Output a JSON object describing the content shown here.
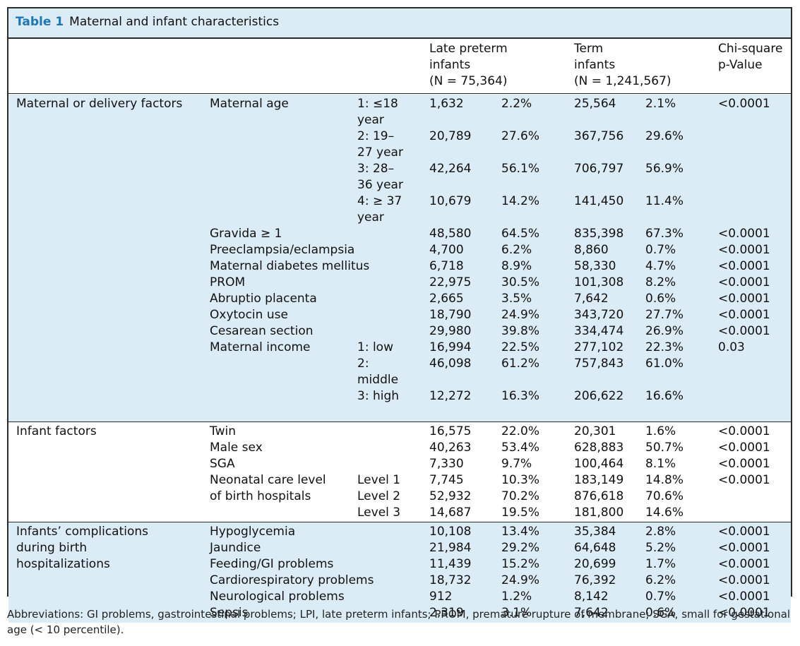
{
  "table": {
    "label": "Table 1",
    "title": "Maternal and infant characteristics",
    "headers": {
      "lpi": [
        "Late preterm",
        "infants",
        "(N = 75,364)"
      ],
      "term": [
        "Term",
        "infants",
        "(N = 1,241,567)"
      ],
      "chi": [
        "Chi-square",
        "p-Value"
      ]
    },
    "groups": [
      {
        "name": "Maternal or delivery factors",
        "rows": [
          {
            "factor": "Maternal age",
            "sub": "1: ≤18 year",
            "lpi_n": "1,632",
            "lpi_pct": "2.2%",
            "term_n": "25,564",
            "term_pct": "2.1%",
            "p": "<0.0001"
          },
          {
            "factor": "",
            "sub": "2: 19–27 year",
            "lpi_n": "20,789",
            "lpi_pct": "27.6%",
            "term_n": "367,756",
            "term_pct": "29.6%",
            "p": ""
          },
          {
            "factor": "",
            "sub": "3: 28–36 year",
            "lpi_n": "42,264",
            "lpi_pct": "56.1%",
            "term_n": "706,797",
            "term_pct": "56.9%",
            "p": ""
          },
          {
            "factor": "",
            "sub": "4: ≥ 37 year",
            "lpi_n": "10,679",
            "lpi_pct": "14.2%",
            "term_n": "141,450",
            "term_pct": "11.4%",
            "p": ""
          },
          {
            "factor": "Gravida ≥ 1",
            "sub": "",
            "lpi_n": "48,580",
            "lpi_pct": "64.5%",
            "term_n": "835,398",
            "term_pct": "67.3%",
            "p": "<0.0001"
          },
          {
            "factor": "Preeclampsia/eclampsia",
            "sub": "",
            "lpi_n": "4,700",
            "lpi_pct": "6.2%",
            "term_n": "8,860",
            "term_pct": "0.7%",
            "p": "<0.0001"
          },
          {
            "factor": "Maternal diabetes mellitus",
            "sub": "",
            "lpi_n": "6,718",
            "lpi_pct": "8.9%",
            "term_n": "58,330",
            "term_pct": "4.7%",
            "p": "<0.0001"
          },
          {
            "factor": "PROM",
            "sub": "",
            "lpi_n": "22,975",
            "lpi_pct": "30.5%",
            "term_n": "101,308",
            "term_pct": "8.2%",
            "p": "<0.0001"
          },
          {
            "factor": "Abruptio placenta",
            "sub": "",
            "lpi_n": "2,665",
            "lpi_pct": "3.5%",
            "term_n": "7,642",
            "term_pct": "0.6%",
            "p": "<0.0001"
          },
          {
            "factor": "Oxytocin use",
            "sub": "",
            "lpi_n": "18,790",
            "lpi_pct": "24.9%",
            "term_n": "343,720",
            "term_pct": "27.7%",
            "p": "<0.0001"
          },
          {
            "factor": "Cesarean section",
            "sub": "",
            "lpi_n": "29,980",
            "lpi_pct": "39.8%",
            "term_n": "334,474",
            "term_pct": "26.9%",
            "p": "<0.0001"
          },
          {
            "factor": "Maternal income",
            "sub": "1: low",
            "lpi_n": "16,994",
            "lpi_pct": "22.5%",
            "term_n": "277,102",
            "term_pct": "22.3%",
            "p": "0.03"
          },
          {
            "factor": "",
            "sub": "2: middle",
            "lpi_n": "46,098",
            "lpi_pct": "61.2%",
            "term_n": "757,843",
            "term_pct": "61.0%",
            "p": ""
          },
          {
            "factor": "",
            "sub": "3: high",
            "lpi_n": "12,272",
            "lpi_pct": "16.3%",
            "term_n": "206,622",
            "term_pct": "16.6%",
            "p": ""
          }
        ]
      },
      {
        "name": "Infant factors",
        "rows": [
          {
            "factor": "Twin",
            "sub": "",
            "lpi_n": "16,575",
            "lpi_pct": "22.0%",
            "term_n": "20,301",
            "term_pct": "1.6%",
            "p": "<0.0001"
          },
          {
            "factor": "Male sex",
            "sub": "",
            "lpi_n": "40,263",
            "lpi_pct": "53.4%",
            "term_n": "628,883",
            "term_pct": "50.7%",
            "p": "<0.0001"
          },
          {
            "factor": "SGA",
            "sub": "",
            "lpi_n": "7,330",
            "lpi_pct": "9.7%",
            "term_n": "100,464",
            "term_pct": "8.1%",
            "p": "<0.0001"
          },
          {
            "factor": "Neonatal care level",
            "sub": "Level 1",
            "lpi_n": "7,745",
            "lpi_pct": "10.3%",
            "term_n": "183,149",
            "term_pct": "14.8%",
            "p": "<0.0001"
          },
          {
            "factor": "of birth hospitals",
            "sub": "Level 2",
            "lpi_n": "52,932",
            "lpi_pct": "70.2%",
            "term_n": "876,618",
            "term_pct": "70.6%",
            "p": ""
          },
          {
            "factor": "",
            "sub": "Level 3",
            "lpi_n": "14,687",
            "lpi_pct": "19.5%",
            "term_n": "181,800",
            "term_pct": "14.6%",
            "p": ""
          }
        ]
      },
      {
        "name": "Infants’ complications during birth hospitalizations",
        "rows": [
          {
            "factor": "Hypoglycemia",
            "sub": "",
            "lpi_n": "10,108",
            "lpi_pct": "13.4%",
            "term_n": "35,384",
            "term_pct": "2.8%",
            "p": "<0.0001"
          },
          {
            "factor": "Jaundice",
            "sub": "",
            "lpi_n": "21,984",
            "lpi_pct": "29.2%",
            "term_n": "64,648",
            "term_pct": "5.2%",
            "p": "<0.0001"
          },
          {
            "factor": "Feeding/GI problems",
            "sub": "",
            "lpi_n": "11,439",
            "lpi_pct": "15.2%",
            "term_n": "20,699",
            "term_pct": "1.7%",
            "p": "<0.0001"
          },
          {
            "factor": "Cardiorespiratory problems",
            "sub": "",
            "lpi_n": "18,732",
            "lpi_pct": "24.9%",
            "term_n": "76,392",
            "term_pct": "6.2%",
            "p": "<0.0001"
          },
          {
            "factor": "Neurological problems",
            "sub": "",
            "lpi_n": "912",
            "lpi_pct": "1.2%",
            "term_n": "8,142",
            "term_pct": "0.7%",
            "p": "<0.0001"
          },
          {
            "factor": "Sepsis",
            "sub": "",
            "lpi_n": "2,319",
            "lpi_pct": "3.1%",
            "term_n": "7,642",
            "term_pct": "0.6%",
            "p": "<0.0001"
          }
        ]
      }
    ],
    "footnote": "Abbreviations: GI problems, gastrointestinal problems; LPI, late preterm infants; PROM, premature rupture of membrane; SGA, small for gestational age (< 10 percentile).",
    "colors": {
      "header_fill": "#dcecf6",
      "label_color": "#1f76b4",
      "border": "#2b2b2b"
    }
  }
}
